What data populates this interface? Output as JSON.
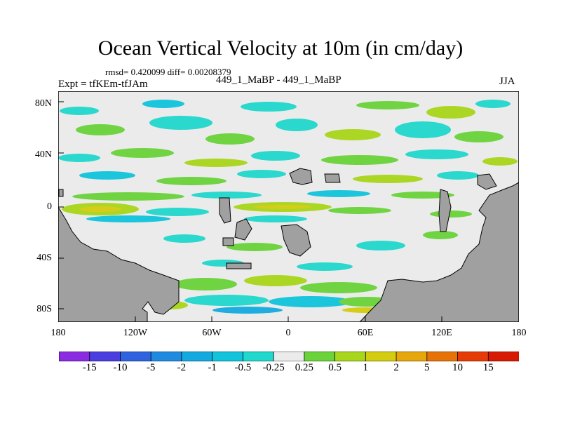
{
  "title": "Ocean Vertical Velocity at 10m (in cm/day)",
  "stats": "rmsd= 0.420099 diff= 0.00208379",
  "expt": "Expt = tfKEm-tfJAm",
  "diff_name": "449_1_MaBP - 449_1_MaBP",
  "season": "JJA",
  "axes": {
    "y_ticks": [
      "80N",
      "40N",
      "0",
      "40S",
      "80S"
    ],
    "x_ticks": [
      "180",
      "120W",
      "60W",
      "0",
      "60E",
      "120E",
      "180"
    ]
  },
  "colors": {
    "land": "#a0a0a0",
    "neutral_band": "#ebebeb",
    "frame": "#000000"
  },
  "colorbar": {
    "labels": [
      "-15",
      "-10",
      "-5",
      "-2",
      "-1",
      "-0.5",
      "-0.25",
      "0.25",
      "0.5",
      "1",
      "2",
      "5",
      "10",
      "15"
    ],
    "colors": [
      "#8a2be2",
      "#4b3ee0",
      "#2f62df",
      "#1e8be0",
      "#12aadf",
      "#10c4dc",
      "#20d8cc",
      "#ebebeb",
      "#6ad33a",
      "#a8d61a",
      "#d4cc0e",
      "#e6a70b",
      "#e77308",
      "#e63b07",
      "#d81a05"
    ]
  }
}
